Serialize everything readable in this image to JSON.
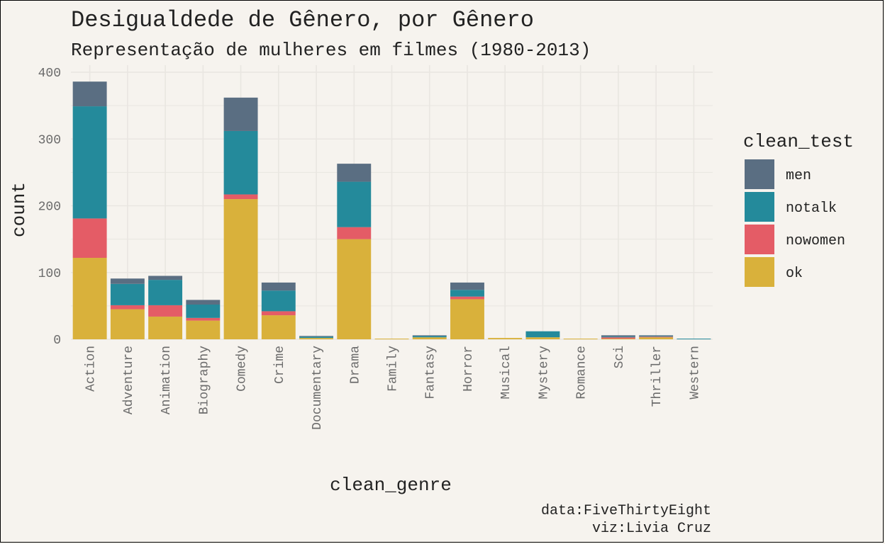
{
  "chart_data": {
    "type": "bar",
    "stacked": true,
    "title": "Desigualdede de Gênero, por Gênero",
    "subtitle": "Representação de mulheres em filmes (1980-2013)",
    "xlabel": "clean_genre",
    "ylabel": "count",
    "ylim": [
      0,
      400
    ],
    "yticks": [
      0,
      100,
      200,
      300,
      400
    ],
    "grid": true,
    "legend_title": "clean_test",
    "legend_position": "right",
    "categories": [
      "Action",
      "Adventure",
      "Animation",
      "Biography",
      "Comedy",
      "Crime",
      "Documentary",
      "Drama",
      "Family",
      "Fantasy",
      "Horror",
      "Musical",
      "Mystery",
      "Romance",
      "Sci",
      "Thriller",
      "Western"
    ],
    "series": [
      {
        "name": "ok",
        "color": "#d9b13b",
        "values": [
          122,
          45,
          34,
          28,
          210,
          36,
          2,
          150,
          1,
          3,
          60,
          2,
          3,
          1,
          1,
          3,
          0
        ]
      },
      {
        "name": "nowomen",
        "color": "#e45c66",
        "values": [
          59,
          6,
          17,
          4,
          7,
          6,
          0,
          18,
          0,
          0,
          4,
          0,
          0,
          0,
          2,
          1,
          0
        ]
      },
      {
        "name": "notalk",
        "color": "#248a9b",
        "values": [
          168,
          32,
          38,
          20,
          95,
          31,
          2,
          68,
          0,
          2,
          10,
          0,
          9,
          0,
          1,
          1,
          1
        ]
      },
      {
        "name": "men",
        "color": "#5a6e82",
        "values": [
          37,
          8,
          6,
          7,
          50,
          12,
          1,
          27,
          0,
          1,
          11,
          0,
          0,
          0,
          2,
          1,
          0
        ]
      }
    ],
    "legend_order": [
      "men",
      "notalk",
      "nowomen",
      "ok"
    ],
    "caption": [
      "data:FiveThirtyEight",
      "viz:Livia Cruz"
    ]
  }
}
